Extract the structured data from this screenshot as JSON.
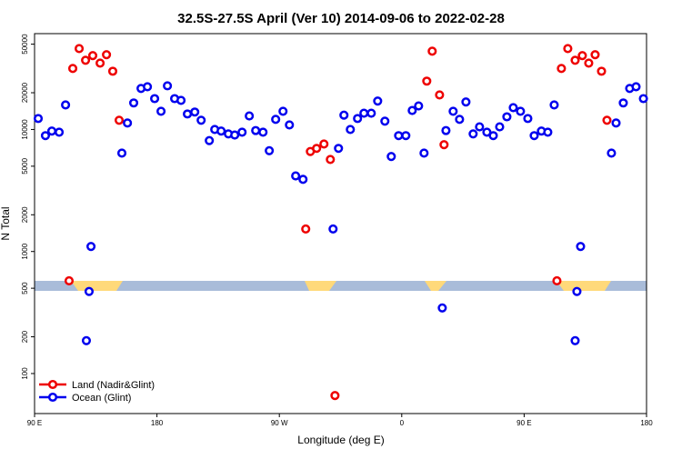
{
  "chart_data": {
    "type": "scatter",
    "title": "32.5S-27.5S April (Ver 10)   2014-09-06 to 2022-02-28",
    "x_label": "Longitude (deg E)",
    "y_label": "N Total",
    "log_y": true,
    "legend": "bottom-left",
    "xlim": [
      90,
      540
    ],
    "ylim": [
      47,
      61000
    ],
    "xticks": [
      {
        "value": 90,
        "label": "90 E"
      },
      180,
      {
        "value": 270,
        "label": "90 W"
      },
      {
        "value": 360,
        "label": "0"
      },
      {
        "value": 450,
        "label": "90 E"
      },
      {
        "value": 540,
        "label": "180"
      }
    ],
    "yticks": [
      100,
      200,
      500,
      1000,
      2000,
      5000,
      10000,
      20000,
      50000
    ],
    "series": [
      {
        "name": "Land (Nadir&Glint)",
        "color": "#ee0000",
        "x": [
          115.4,
          118.1,
          122.8,
          127.5,
          132.8,
          138.2,
          142.9,
          147.5,
          152.2,
          289.4,
          292.8,
          297.4,
          302.8,
          307.5,
          310.9,
          378.4,
          382.4,
          387.8,
          391.1,
          474.1,
          477.4,
          482.1,
          487.5,
          492.8,
          497.5,
          502.2,
          506.9,
          510.9
        ],
        "values": [
          575,
          31600,
          46000,
          36900,
          40300,
          35000,
          41000,
          30000,
          11900,
          1530,
          6600,
          7000,
          7600,
          5680,
          66,
          24900,
          43800,
          19200,
          7500,
          575,
          31600,
          46000,
          36900,
          40300,
          35000,
          41000,
          30000,
          11900
        ]
      },
      {
        "name": "Ocean (Glint)",
        "color": "#0000ee",
        "x": [
          92.7,
          98.0,
          102.7,
          108.1,
          112.8,
          128.1,
          130.1,
          131.5,
          154.2,
          158.3,
          162.9,
          168.3,
          173.0,
          178.3,
          183.0,
          187.7,
          193.0,
          197.7,
          202.4,
          207.8,
          212.5,
          218.5,
          222.5,
          227.2,
          232.5,
          237.2,
          242.6,
          247.9,
          252.6,
          258.0,
          262.6,
          267.3,
          272.7,
          277.4,
          282.0,
          287.4,
          309.5,
          313.5,
          317.5,
          322.2,
          327.5,
          332.2,
          337.6,
          342.3,
          347.6,
          352.3,
          357.7,
          363.0,
          367.7,
          372.4,
          376.4,
          389.8,
          392.5,
          397.8,
          402.5,
          407.2,
          412.5,
          417.2,
          422.6,
          427.3,
          432.0,
          437.3,
          442.0,
          447.3,
          452.7,
          457.4,
          462.7,
          467.4,
          472.1,
          487.5,
          488.8,
          491.5,
          514.2,
          517.6,
          522.9,
          527.6,
          532.3,
          537.7
        ],
        "values": [
          12300,
          8900,
          9700,
          9500,
          15900,
          186,
          470,
          1100,
          6400,
          11300,
          16500,
          21700,
          22400,
          17900,
          14100,
          22800,
          17900,
          17300,
          13400,
          13900,
          11900,
          8100,
          10000,
          9700,
          9200,
          9000,
          9500,
          12900,
          9800,
          9500,
          6700,
          12100,
          14100,
          10900,
          4160,
          3900,
          1530,
          7000,
          13100,
          10000,
          12300,
          13600,
          13600,
          17100,
          11700,
          6000,
          8900,
          8900,
          14300,
          15600,
          6400,
          345,
          9800,
          14100,
          12100,
          16800,
          9200,
          10500,
          9500,
          8900,
          10500,
          12700,
          15100,
          14100,
          12300,
          8900,
          9700,
          9500,
          15900,
          186,
          470,
          1100,
          6400,
          11300,
          16500,
          21700,
          22400,
          17900
        ]
      }
    ]
  }
}
